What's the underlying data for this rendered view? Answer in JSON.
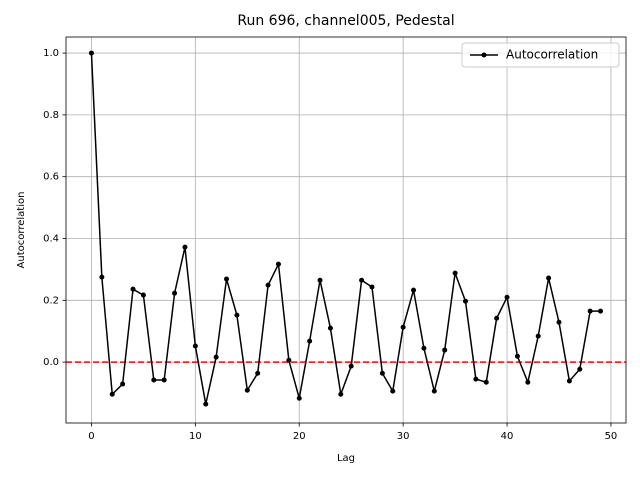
{
  "chart_data": {
    "type": "line",
    "title": "Run 696, channel005, Pedestal",
    "xlabel": "Lag",
    "ylabel": "Autocorrelation",
    "x": [
      0,
      1,
      2,
      3,
      4,
      5,
      6,
      7,
      8,
      9,
      10,
      11,
      12,
      13,
      14,
      15,
      16,
      17,
      18,
      19,
      20,
      21,
      22,
      23,
      24,
      25,
      26,
      27,
      28,
      29,
      30,
      31,
      32,
      33,
      34,
      35,
      36,
      37,
      38,
      39,
      40,
      41,
      42,
      43,
      44,
      45,
      46,
      47,
      48,
      49
    ],
    "series": [
      {
        "name": "Autocorrelation",
        "color": "#000000",
        "values": [
          1.0,
          0.275,
          -0.104,
          -0.071,
          0.236,
          0.217,
          -0.058,
          -0.058,
          0.223,
          0.372,
          0.052,
          -0.136,
          0.016,
          0.269,
          0.152,
          -0.091,
          -0.036,
          0.249,
          0.317,
          0.006,
          -0.117,
          0.068,
          0.265,
          0.11,
          -0.104,
          -0.013,
          0.265,
          0.243,
          -0.036,
          -0.094,
          0.113,
          0.233,
          0.045,
          -0.094,
          0.039,
          0.288,
          0.197,
          -0.055,
          -0.065,
          0.142,
          0.21,
          0.019,
          -0.065,
          0.084,
          0.272,
          0.129,
          -0.061,
          -0.023,
          0.165,
          0.165
        ]
      }
    ],
    "hline": {
      "value": 0,
      "color": "#ff0000"
    },
    "xlim": [
      -2.45,
      51.45
    ],
    "xticks": [
      0,
      10,
      20,
      30,
      40,
      50
    ],
    "ylim": [
      -0.197,
      1.052
    ],
    "yticks": [
      {
        "value": 0,
        "label": "0.0"
      },
      {
        "value": 0.2,
        "label": "0.2"
      },
      {
        "value": 0.4,
        "label": "0.4"
      },
      {
        "value": 0.6,
        "label": "0.6"
      },
      {
        "value": 0.8,
        "label": "0.8"
      },
      {
        "value": 1.0,
        "label": "1.0"
      }
    ],
    "grid": true,
    "legend": "upper right"
  }
}
